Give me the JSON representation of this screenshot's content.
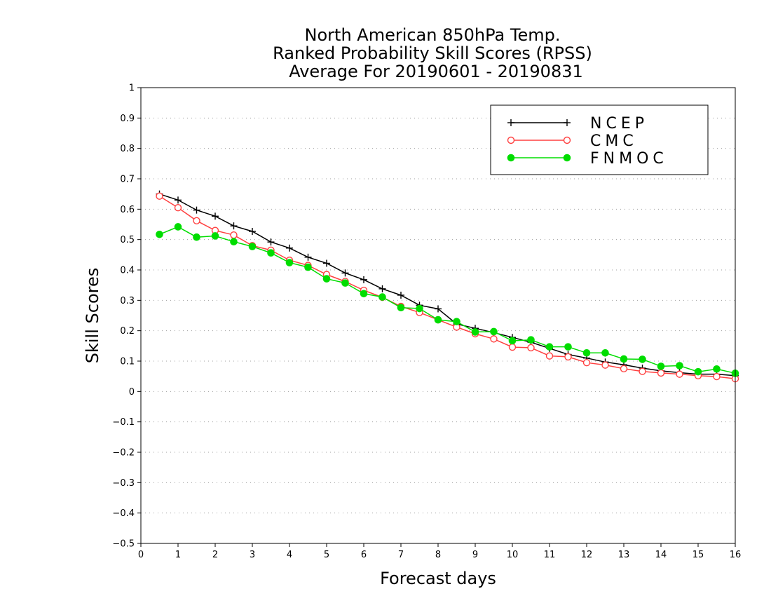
{
  "title_lines": [
    "North American 850hPa Temp.",
    "Ranked Probability Skill Scores (RPSS)",
    "Average For 20190601 - 20190831"
  ],
  "chart_data": {
    "type": "line",
    "title": "North American 850hPa Temp. Ranked Probability Skill Scores (RPSS) Average For 20190601 - 20190831",
    "xlabel": "Forecast days",
    "ylabel": "Skill Scores",
    "xlim": [
      0,
      16
    ],
    "ylim": [
      -0.5,
      1
    ],
    "x_ticks": [
      "0",
      "1",
      "2",
      "3",
      "4",
      "5",
      "6",
      "7",
      "8",
      "9",
      "10",
      "11",
      "12",
      "13",
      "14",
      "15",
      "16"
    ],
    "y_ticks": [
      "−0.5",
      "−0.4",
      "−0.3",
      "−0.2",
      "−0.1",
      "0",
      "0.1",
      "0.2",
      "0.3",
      "0.4",
      "0.5",
      "0.6",
      "0.7",
      "0.8",
      "0.9",
      "1"
    ],
    "grid": "horizontal dotted",
    "legend_position": "top-right",
    "x": [
      0.5,
      1,
      1.5,
      2,
      2.5,
      3,
      3.5,
      4,
      4.5,
      5,
      5.5,
      6,
      6.5,
      7,
      7.5,
      8,
      8.5,
      9,
      9.5,
      10,
      10.5,
      11,
      11.5,
      12,
      12.5,
      13,
      13.5,
      14,
      14.5,
      15,
      15.5,
      16
    ],
    "series": [
      {
        "name": "NCEP",
        "color": "#000000",
        "marker": "plus",
        "values": [
          0.65,
          0.63,
          0.597,
          0.577,
          0.545,
          0.527,
          0.492,
          0.472,
          0.442,
          0.422,
          0.39,
          0.368,
          0.338,
          0.317,
          0.284,
          0.272,
          0.222,
          0.208,
          0.194,
          0.178,
          0.162,
          0.142,
          0.122,
          0.11,
          0.097,
          0.088,
          0.077,
          0.068,
          0.062,
          0.057,
          0.057,
          0.052
        ]
      },
      {
        "name": "CMC",
        "color": "#ff4040",
        "marker": "open-circle",
        "values": [
          0.643,
          0.605,
          0.562,
          0.53,
          0.515,
          0.48,
          0.465,
          0.432,
          0.415,
          0.385,
          0.362,
          0.333,
          0.31,
          0.28,
          0.26,
          0.236,
          0.212,
          0.19,
          0.173,
          0.146,
          0.144,
          0.117,
          0.114,
          0.095,
          0.087,
          0.075,
          0.066,
          0.061,
          0.057,
          0.052,
          0.049,
          0.042
        ]
      },
      {
        "name": "FNMOC",
        "color": "#00dd00",
        "marker": "filled-circle",
        "values": [
          0.517,
          0.542,
          0.508,
          0.512,
          0.493,
          0.477,
          0.456,
          0.424,
          0.409,
          0.371,
          0.357,
          0.322,
          0.311,
          0.276,
          0.273,
          0.236,
          0.23,
          0.196,
          0.197,
          0.167,
          0.17,
          0.147,
          0.147,
          0.127,
          0.127,
          0.107,
          0.106,
          0.083,
          0.085,
          0.065,
          0.074,
          0.06
        ]
      }
    ]
  }
}
